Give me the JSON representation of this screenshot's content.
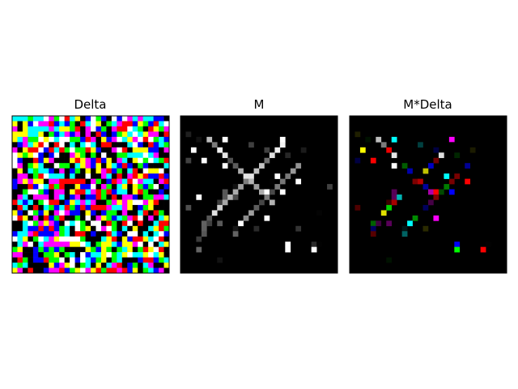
{
  "panels": [
    {
      "title": "Delta"
    },
    {
      "title": "M"
    },
    {
      "title": "M*Delta"
    }
  ]
}
